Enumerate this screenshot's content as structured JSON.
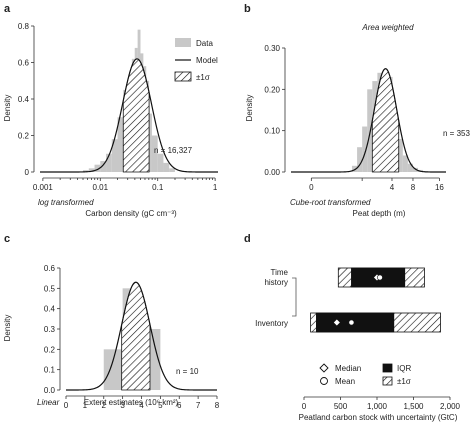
{
  "colors": {
    "bar": "#c8c8c8",
    "curve": "#111111",
    "iqr": "#111111",
    "hatch": "#111111"
  },
  "chart_data": [
    {
      "id": "a",
      "type": "bar",
      "panel_letter": "a",
      "ylabel": "Density",
      "xlabel": "Carbon density (gC cm⁻³)",
      "x_note": "log transformed",
      "ylim": [
        0,
        0.8
      ],
      "yticks": [
        "0",
        "0.2",
        "0.4",
        "0.6",
        "0.8"
      ],
      "xtick_labels": [
        "0.001",
        "0.01",
        "0.1",
        "1"
      ],
      "n_label": "n = 16,327",
      "legend": {
        "data": "Data",
        "model": "Model",
        "sigma": "±1σ",
        "position": "top-right"
      },
      "bins_log10_edges": [
        -2.3,
        -2.2,
        -2.1,
        -2.0,
        -1.9,
        -1.8,
        -1.7,
        -1.6,
        -1.5,
        -1.45,
        -1.4,
        -1.35,
        -1.3,
        -1.25,
        -1.2,
        -1.15,
        -1.1,
        -1.0,
        -0.9,
        -0.8,
        -0.7
      ],
      "bins_density": [
        0.01,
        0.02,
        0.04,
        0.06,
        0.1,
        0.18,
        0.3,
        0.45,
        0.55,
        0.62,
        0.68,
        0.78,
        0.65,
        0.58,
        0.5,
        0.32,
        0.2,
        0.1,
        0.05,
        0.02
      ],
      "model": {
        "mean_log10": -1.36,
        "sd_log10": 0.25,
        "peak": 0.62
      },
      "sigma_band_log10": [
        -1.6,
        -1.15
      ]
    },
    {
      "id": "b",
      "type": "bar",
      "panel_letter": "b",
      "title": "Area weighted",
      "ylabel": "Density",
      "xlabel": "Peat depth (m)",
      "x_note": "Cube-root transformed",
      "ylim": [
        0,
        0.3
      ],
      "yticks": [
        "0.00",
        "0.10",
        "0.20",
        "0.30"
      ],
      "xtick_labels": [
        "0",
        "4",
        "8",
        "16"
      ],
      "xtick_values_cuberoot": [
        0,
        1.587,
        2.0,
        2.52
      ],
      "extra_tick_cuberoot": 1.0,
      "n_label": "n = 353",
      "bins_cuberoot_edges": [
        0.8,
        0.9,
        1.0,
        1.1,
        1.2,
        1.3,
        1.4,
        1.5,
        1.6,
        1.7,
        1.8,
        1.9,
        2.0,
        2.1,
        2.2
      ],
      "bins_density": [
        0.015,
        0.06,
        0.11,
        0.2,
        0.22,
        0.24,
        0.24,
        0.23,
        0.1,
        0.08,
        0.04,
        0.02,
        0.01,
        0.005
      ],
      "model": {
        "mean": 1.46,
        "sd": 0.22,
        "peak": 0.25
      },
      "sigma_band": [
        1.2,
        1.72
      ]
    },
    {
      "id": "c",
      "type": "bar",
      "panel_letter": "c",
      "ylabel": "Density",
      "xlabel": "Extent estimates (10⁶ km²)",
      "x_note": "Linear",
      "ylim": [
        0,
        0.6
      ],
      "yticks": [
        "0.0",
        "0.1",
        "0.2",
        "0.3",
        "0.4",
        "0.5",
        "0.6"
      ],
      "xlim": [
        0,
        8
      ],
      "xtick_labels": [
        "0",
        "1",
        "2",
        "3",
        "4",
        "5",
        "6",
        "7",
        "8"
      ],
      "n_label": "n = 10",
      "bins_edges": [
        2,
        3,
        4,
        5
      ],
      "bins_density": [
        0.2,
        0.5,
        0.3
      ],
      "model": {
        "mean": 3.7,
        "sd": 0.75,
        "peak": 0.53
      },
      "sigma_band": [
        2.95,
        4.45
      ]
    },
    {
      "id": "d",
      "type": "box",
      "panel_letter": "d",
      "xlabel": "Peatland carbon stock with uncertainty (GtC)",
      "xlim": [
        0,
        2000
      ],
      "xtick_labels": [
        "0",
        "500",
        "1,000",
        "1,500",
        "2,000"
      ],
      "rows": [
        {
          "label_line1": "Time",
          "label_line2": "history",
          "sigma_low": 470,
          "iqr_low": 650,
          "iqr_high": 1380,
          "sigma_high": 1650,
          "median": 1000,
          "mean": 1040
        },
        {
          "label_line1": "Inventory",
          "label_line2": "",
          "sigma_low": 90,
          "iqr_low": 170,
          "iqr_high": 1230,
          "sigma_high": 1870,
          "median": 450,
          "mean": 650
        }
      ],
      "legend": {
        "median": "Median",
        "mean": "Mean",
        "iqr": "IQR",
        "sigma": "±1σ"
      }
    }
  ]
}
